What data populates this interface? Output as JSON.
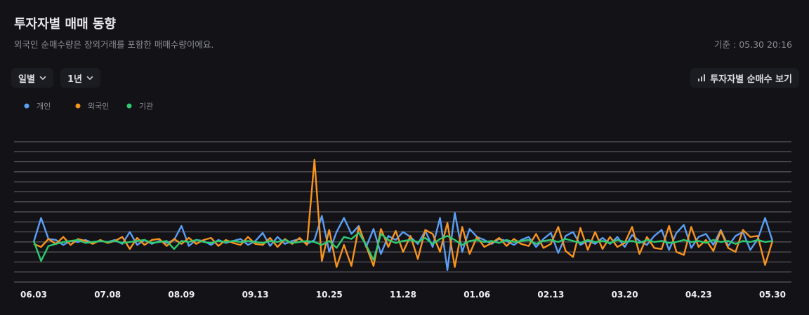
{
  "header": {
    "title": "투자자별 매매 동향",
    "subtitle": "외국인 순매수량은 장외거래를 포함한 매매수량이에요.",
    "timestamp": "기준 : 05.30 20:16"
  },
  "controls": {
    "period": "일별",
    "range": "1년",
    "net_buy": "투자자별 순매수 보기"
  },
  "chart_data": {
    "type": "line",
    "grid": true,
    "ylim": [
      -4,
      10
    ],
    "yticks": [
      -4,
      -3,
      -2,
      -1,
      0,
      1,
      2,
      3,
      4,
      5,
      6,
      7,
      8,
      9,
      10
    ],
    "categories": [
      "06.03",
      null,
      null,
      null,
      null,
      null,
      null,
      null,
      null,
      null,
      "07.08",
      null,
      null,
      null,
      null,
      null,
      null,
      null,
      null,
      null,
      "08.09",
      null,
      null,
      null,
      null,
      null,
      null,
      null,
      null,
      null,
      "09.13",
      null,
      null,
      null,
      null,
      null,
      null,
      null,
      null,
      null,
      "10.25",
      null,
      null,
      null,
      null,
      null,
      null,
      null,
      null,
      null,
      "11.28",
      null,
      null,
      null,
      null,
      null,
      null,
      null,
      null,
      null,
      "01.06",
      null,
      null,
      null,
      null,
      null,
      null,
      null,
      null,
      null,
      "02.13",
      null,
      null,
      null,
      null,
      null,
      null,
      null,
      null,
      null,
      "03.20",
      null,
      null,
      null,
      null,
      null,
      null,
      null,
      null,
      null,
      "04.23",
      null,
      null,
      null,
      null,
      null,
      null,
      null,
      null,
      null,
      "05.30"
    ],
    "series": [
      {
        "name": "개인",
        "color": "#5b9ff5",
        "values": [
          0,
          2.4,
          0.3,
          0.2,
          -0.3,
          0.1,
          0,
          0.2,
          -0.1,
          0.1,
          0,
          0.2,
          -0.2,
          1.0,
          -0.3,
          0.2,
          -0.2,
          0.1,
          -0.1,
          0.2,
          1.6,
          -0.4,
          0.2,
          0.1,
          -0.3,
          0.2,
          -0.1,
          0.1,
          0.3,
          -0.3,
          0.1,
          0.9,
          -0.4,
          0.5,
          -0.2,
          0.1,
          0.3,
          -0.2,
          0.2,
          2.6,
          -1.0,
          1.0,
          2.4,
          0.8,
          1.6,
          -0.5,
          1.3,
          -1.2,
          0.6,
          0.2,
          1.0,
          0.5,
          -0.2,
          1.1,
          -0.5,
          2.4,
          -2.8,
          2.9,
          -1.0,
          1.3,
          0.5,
          0.2,
          -0.2,
          0.3,
          0.1,
          -0.3,
          0.2,
          0.5,
          -0.5,
          0.3,
          0.9,
          -1.1,
          0.6,
          1.0,
          -0.3,
          0.1,
          -0.2,
          0.4,
          -0.2,
          0.5,
          -0.5,
          0.7,
          0.1,
          -0.3,
          0.6,
          1.2,
          -0.8,
          0.9,
          1.7,
          -0.6,
          0.5,
          0.8,
          -0.3,
          1.2,
          -0.4,
          0.6,
          1.0,
          -0.8,
          0.3,
          2.4,
          0.1
        ]
      },
      {
        "name": "외국인",
        "color": "#f7931e",
        "values": [
          -0.2,
          -0.5,
          0.3,
          -0.2,
          0.5,
          -0.3,
          0.3,
          0.1,
          -0.2,
          0.2,
          -0.1,
          0.1,
          0.5,
          -0.7,
          0.4,
          -0.3,
          0.2,
          0.3,
          -0.4,
          0.3,
          -0.2,
          0.4,
          -0.2,
          0.2,
          0.4,
          -0.4,
          0.2,
          -0.1,
          -0.3,
          0.5,
          -0.2,
          -0.3,
          0.4,
          -0.5,
          0.3,
          -0.2,
          0.4,
          -0.3,
          8.2,
          -1.9,
          1.2,
          -2.5,
          -0.3,
          -2.4,
          1.5,
          -0.4,
          -2.4,
          1.3,
          -0.5,
          1.1,
          -1.0,
          0.6,
          -1.7,
          1.2,
          0.8,
          -1.0,
          1.9,
          -2.5,
          1.5,
          -1.2,
          0.5,
          -0.5,
          -0.1,
          0.4,
          -0.4,
          0.3,
          -0.2,
          -0.4,
          0.8,
          -0.6,
          -0.2,
          1.5,
          -0.9,
          -1.5,
          1.4,
          -0.8,
          1.0,
          -0.7,
          0.5,
          -0.5,
          -0.1,
          1.5,
          -1.2,
          0.5,
          -0.6,
          -0.7,
          1.6,
          -1.0,
          -1.3,
          1.5,
          -0.5,
          0.2,
          -0.9,
          1.1,
          -0.6,
          -1.0,
          1.2,
          0.5,
          0.6,
          -2.3,
          0.1
        ]
      },
      {
        "name": "기관",
        "color": "#2ecc71",
        "values": [
          0.1,
          -1.9,
          -0.4,
          -0.2,
          0,
          0.1,
          0.2,
          -0.1,
          0,
          0.1,
          0,
          0.1,
          -0.1,
          0,
          0.1,
          0.2,
          -0.1,
          0,
          0.1,
          -0.7,
          0.1,
          0,
          0.2,
          0,
          -0.1,
          0.1,
          0,
          0.1,
          0,
          0.1,
          0,
          -0.1,
          0.1,
          0,
          0.2,
          -0.1,
          0,
          0.1,
          0,
          -0.3,
          0.1,
          -0.6,
          0.5,
          0.3,
          0.9,
          -0.3,
          -1.8,
          0.8,
          0.2,
          -0.1,
          0.1,
          0.2,
          0,
          0.4,
          -0.2,
          0.3,
          0.6,
          0.2,
          -0.3,
          0.1,
          0.2,
          0,
          0.1,
          -0.1,
          0.2,
          0,
          0.1,
          0.2,
          -0.2,
          0.1,
          0.2,
          0,
          0.3,
          0.1,
          -0.1,
          0.2,
          0,
          0.1,
          -0.1,
          0.2,
          0,
          0.1,
          -0.1,
          0.2,
          0,
          0.1,
          -0.1,
          0,
          0.2,
          0,
          0.1,
          -0.1,
          0.2,
          0,
          0.1,
          -0.2,
          0.1,
          0,
          0.2,
          0,
          0.1
        ]
      }
    ]
  }
}
